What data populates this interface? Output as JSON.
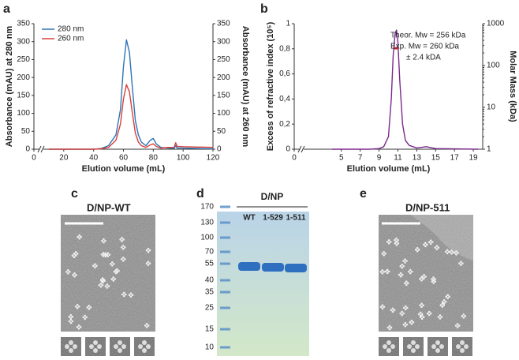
{
  "chart_data": [
    {
      "type": "line",
      "panel": "a",
      "x": [
        10,
        40,
        45,
        50,
        55,
        58,
        60,
        62,
        64,
        66,
        68,
        70,
        72,
        75,
        78,
        80,
        82,
        85,
        90,
        94,
        95,
        96,
        100,
        110,
        120
      ],
      "series": [
        {
          "name": "280 nm",
          "color": "#2e75b6",
          "values": [
            0,
            0,
            2,
            10,
            40,
            110,
            230,
            305,
            270,
            170,
            80,
            40,
            20,
            10,
            25,
            30,
            15,
            5,
            3,
            2,
            10,
            3,
            3,
            2,
            1
          ]
        },
        {
          "name": "260 nm",
          "color": "#d9403a",
          "axis": "y2",
          "values": [
            0,
            0,
            1,
            5,
            25,
            70,
            140,
            180,
            160,
            100,
            45,
            20,
            10,
            5,
            12,
            15,
            8,
            3,
            5,
            5,
            18,
            8,
            7,
            6,
            5
          ]
        }
      ],
      "xlabel": "Elution volume (mL)",
      "ylabel": "Absorbance (mAU) at 280 nm",
      "y2label": "Absorbance (mAU) at 260 nm",
      "xlim": [
        0,
        120
      ],
      "xticks": [
        0,
        20,
        40,
        60,
        80,
        100,
        120
      ],
      "ylim": [
        0,
        350
      ],
      "yticks": [
        0,
        50,
        100,
        150,
        200,
        250,
        300,
        350
      ],
      "y2lim": [
        0,
        350
      ],
      "y2ticks": [
        0,
        50,
        100,
        150,
        200,
        250,
        300,
        350
      ],
      "legend": "upper left"
    },
    {
      "type": "line",
      "panel": "b",
      "series": [
        {
          "color": "#7b2a8c",
          "x": [
            4,
            8,
            9,
            9.5,
            10,
            10.3,
            10.5,
            10.7,
            10.85,
            11,
            11.2,
            11.5,
            11.8,
            12.2,
            13,
            14,
            15,
            19.5
          ],
          "values": [
            0,
            0,
            0.005,
            0.02,
            0.1,
            0.4,
            0.75,
            0.92,
            0.95,
            0.85,
            0.55,
            0.2,
            0.07,
            0.03,
            0.01,
            0.02,
            0.005,
            0
          ]
        },
        {
          "color": "#e0302a",
          "axis": "y2",
          "x": [
            10.6,
            10.8,
            11.0
          ],
          "values": [
            260,
            258,
            262
          ]
        }
      ],
      "xlabel": "Elution volume (mL)",
      "ylabel": "Excess of refractive index (10⁵)",
      "y2label": "Molar Mass (kDa)",
      "xlim": [
        0,
        20
      ],
      "xticks": [
        0,
        5,
        7,
        9,
        11,
        13,
        15,
        17,
        19
      ],
      "ylim": [
        0,
        1
      ],
      "yticks": [
        0,
        {
          "value": 0.2,
          "label": "0,2"
        },
        {
          "value": 0.4,
          "label": "0,4"
        },
        {
          "value": 0.6,
          "label": "0,6"
        },
        {
          "value": 0.8,
          "label": "0,8"
        },
        1
      ],
      "y2lim": [
        1,
        1000
      ],
      "y2ticks": [
        1,
        10,
        100,
        1000
      ],
      "y2log": true,
      "annotations": [
        "Theor. Mw = 256 kDa",
        "Exp. Mw = 260 kDa",
        "± 2.4 kDA"
      ]
    }
  ],
  "panels": {
    "c": {
      "letter": "c",
      "title": "D/NP-WT"
    },
    "d": {
      "letter": "d",
      "title": "D/NP",
      "lanes": [
        "WT",
        "1-529",
        "1-511"
      ],
      "ladder": [
        170,
        130,
        100,
        70,
        55,
        40,
        35,
        25,
        15,
        10
      ]
    },
    "e": {
      "letter": "e",
      "title": "D/NP-511"
    }
  }
}
